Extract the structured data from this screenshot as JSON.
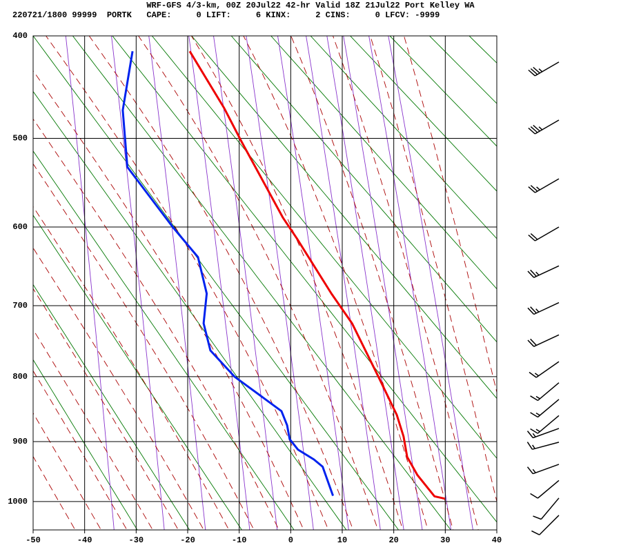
{
  "chart_data": {
    "type": "sounding",
    "title": "WRF-GFS 4/3-km, 00Z 20Jul22 42-hr Valid 18Z 21Jul22 Port Kelley WA",
    "subtitle": "220721/1800 99999  PORTK   CAPE:     0 LIFT:     6 KINX:     2 CINS:     0 LFCV: -9999",
    "xlim": [
      -50,
      40
    ],
    "xticks": [
      -50,
      -40,
      -30,
      -20,
      -10,
      0,
      10,
      20,
      30,
      40
    ],
    "ylim": [
      1050,
      400
    ],
    "yticks": [
      400,
      500,
      600,
      700,
      800,
      900,
      1000
    ],
    "grid": true,
    "series": [
      {
        "color": "#ee0000",
        "pressure": [
          995,
          991,
          955,
          925,
          892,
          858,
          803,
          724,
          684,
          614,
          589,
          503,
          469,
          414
        ],
        "values": [
          29.9,
          27.9,
          24.6,
          22.6,
          21.9,
          20.6,
          17.2,
          11.9,
          7.9,
          1.2,
          -1.5,
          -9.6,
          -12.9,
          -19.6
        ]
      },
      {
        "color": "#0022ee",
        "pressure": [
          990,
          941,
          929,
          913,
          896,
          874,
          852,
          800,
          762,
          724,
          684,
          637,
          600,
          531,
          471,
          414
        ],
        "values": [
          8.2,
          6.2,
          4.5,
          1.4,
          -0.2,
          -0.7,
          -1.8,
          -10.9,
          -15.6,
          -16.9,
          -16.3,
          -18.0,
          -22.9,
          -31.7,
          -32.6,
          -30.7
        ]
      }
    ],
    "winds": {
      "pressure": [
        424,
        481,
        544,
        600,
        648,
        696,
        740,
        778,
        809,
        834,
        859,
        879,
        901,
        937,
        964,
        994,
        1024
      ],
      "direction": [
        240,
        240,
        240,
        240,
        245,
        245,
        245,
        235,
        230,
        230,
        230,
        250,
        255,
        250,
        230,
        220,
        225
      ],
      "speed": [
        35,
        35,
        25,
        20,
        25,
        25,
        20,
        15,
        15,
        15,
        15,
        15,
        15,
        15,
        10,
        10,
        10
      ]
    }
  }
}
